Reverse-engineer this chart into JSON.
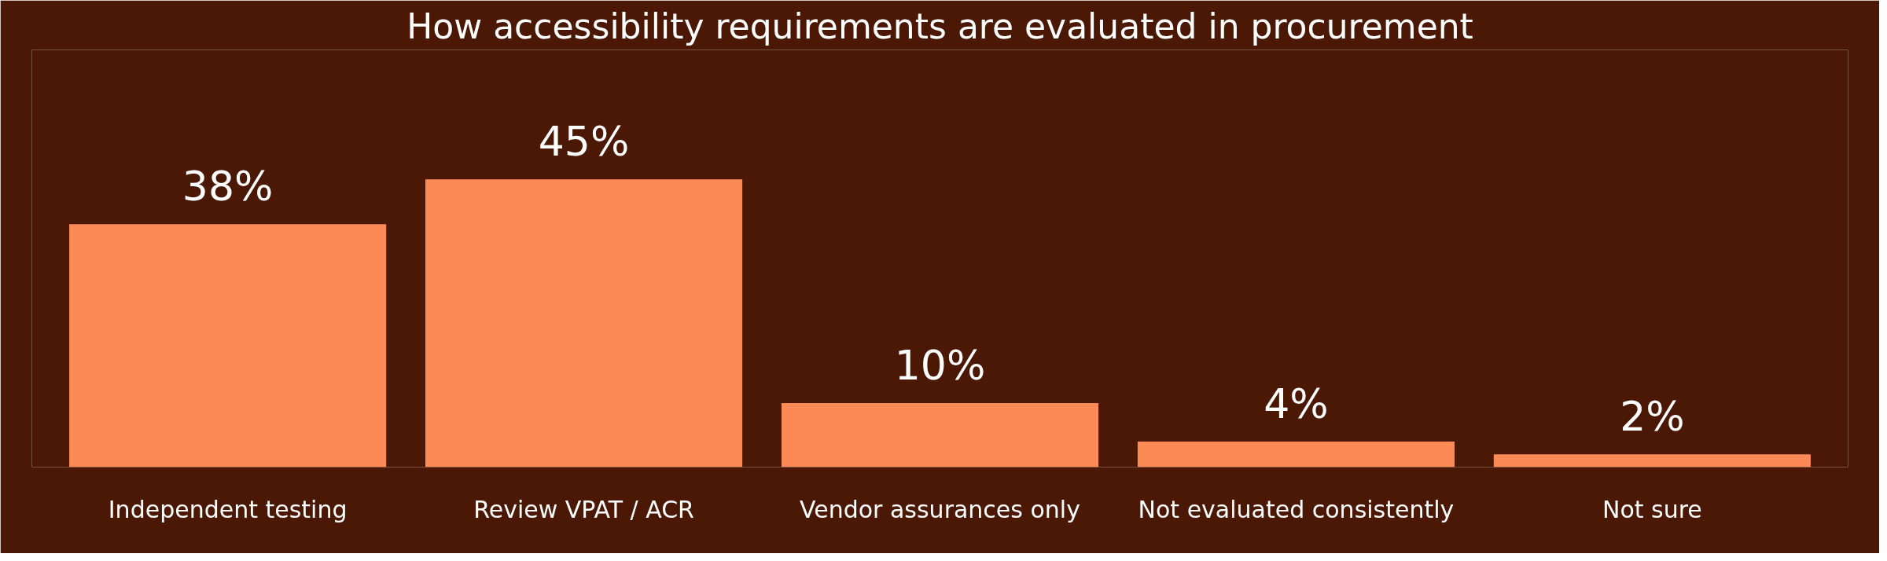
{
  "chart_data": {
    "type": "bar",
    "title": "How accessibility requirements are evaluated in procurement",
    "categories": [
      "Independent testing",
      "Review VPAT / ACR",
      "Vendor assurances only",
      "Not evaluated consistently",
      "Not sure"
    ],
    "values": [
      38,
      45,
      10,
      4,
      2
    ],
    "color": "#fc8a57",
    "value_labels": [
      "38%",
      "45%",
      "10%",
      "4%",
      "2%"
    ],
    "grid": false
  }
}
